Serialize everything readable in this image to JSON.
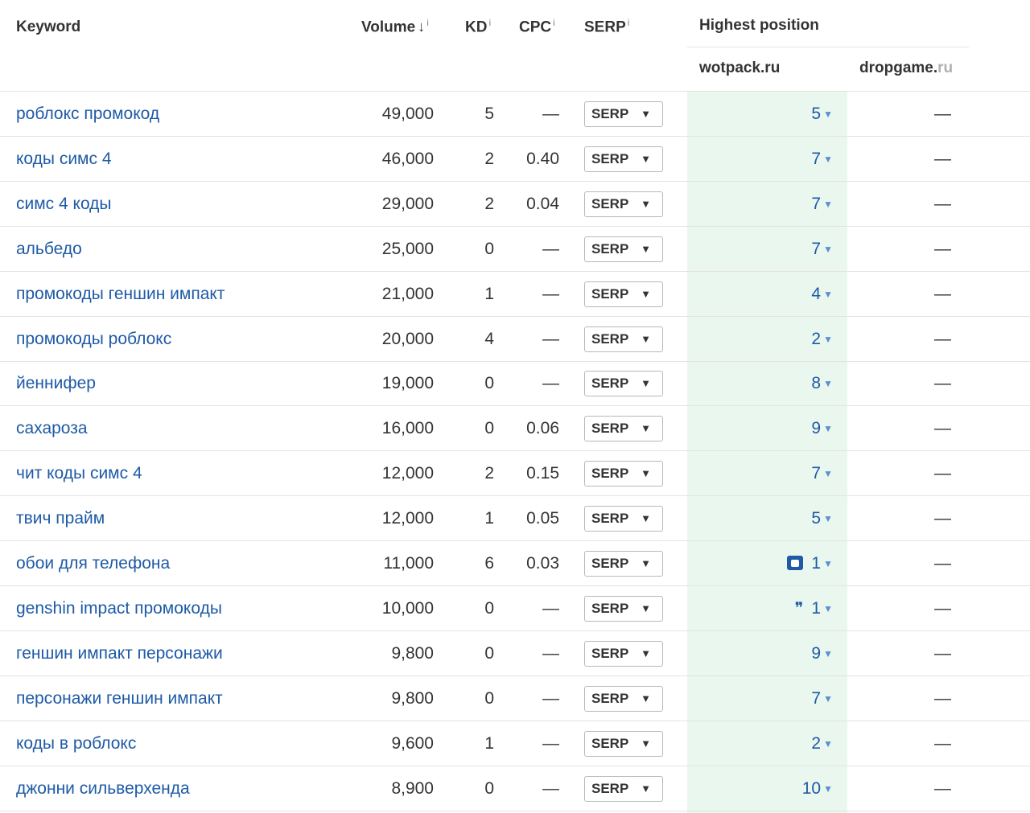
{
  "header": {
    "keyword": "Keyword",
    "volume": "Volume",
    "volume_sort": "↓",
    "kd": "KD",
    "cpc": "CPC",
    "serp": "SERP",
    "info": "i",
    "highest_position": "Highest position",
    "site1": "wotpack.ru",
    "site2_main": "dropgame.",
    "site2_tail": "ru"
  },
  "rows": [
    {
      "keyword": "роблокс промокод",
      "volume": "49,000",
      "kd": "5",
      "cpc": "—",
      "serp": "SERP",
      "pos": "5",
      "dg": "—"
    },
    {
      "keyword": "коды симс 4",
      "volume": "46,000",
      "kd": "2",
      "cpc": "0.40",
      "serp": "SERP",
      "pos": "7",
      "dg": "—"
    },
    {
      "keyword": "симс 4 коды",
      "volume": "29,000",
      "kd": "2",
      "cpc": "0.04",
      "serp": "SERP",
      "pos": "7",
      "dg": "—"
    },
    {
      "keyword": "альбедо",
      "volume": "25,000",
      "kd": "0",
      "cpc": "—",
      "serp": "SERP",
      "pos": "7",
      "dg": "—"
    },
    {
      "keyword": "промокоды геншин импакт",
      "volume": "21,000",
      "kd": "1",
      "cpc": "—",
      "serp": "SERP",
      "pos": "4",
      "dg": "—"
    },
    {
      "keyword": "промокоды роблокс",
      "volume": "20,000",
      "kd": "4",
      "cpc": "—",
      "serp": "SERP",
      "pos": "2",
      "dg": "—"
    },
    {
      "keyword": "йеннифер",
      "volume": "19,000",
      "kd": "0",
      "cpc": "—",
      "serp": "SERP",
      "pos": "8",
      "dg": "—"
    },
    {
      "keyword": "сахароза",
      "volume": "16,000",
      "kd": "0",
      "cpc": "0.06",
      "serp": "SERP",
      "pos": "9",
      "dg": "—"
    },
    {
      "keyword": "чит коды симс 4",
      "volume": "12,000",
      "kd": "2",
      "cpc": "0.15",
      "serp": "SERP",
      "pos": "7",
      "dg": "—"
    },
    {
      "keyword": "твич прайм",
      "volume": "12,000",
      "kd": "1",
      "cpc": "0.05",
      "serp": "SERP",
      "pos": "5",
      "dg": "—"
    },
    {
      "keyword": "обои для телефона",
      "volume": "11,000",
      "kd": "6",
      "cpc": "0.03",
      "serp": "SERP",
      "pos": "1",
      "dg": "—",
      "feature_icon": "image-pack-icon"
    },
    {
      "keyword": "genshin impact промокоды",
      "volume": "10,000",
      "kd": "0",
      "cpc": "—",
      "serp": "SERP",
      "pos": "1",
      "dg": "—",
      "feature_icon": "quote-icon",
      "feature_glyph": "❞"
    },
    {
      "keyword": "геншин импакт персонажи",
      "volume": "9,800",
      "kd": "0",
      "cpc": "—",
      "serp": "SERP",
      "pos": "9",
      "dg": "—"
    },
    {
      "keyword": "персонажи геншин импакт",
      "volume": "9,800",
      "kd": "0",
      "cpc": "—",
      "serp": "SERP",
      "pos": "7",
      "dg": "—"
    },
    {
      "keyword": "коды в роблокс",
      "volume": "9,600",
      "kd": "1",
      "cpc": "—",
      "serp": "SERP",
      "pos": "2",
      "dg": "—"
    },
    {
      "keyword": "джонни сильверхенда",
      "volume": "8,900",
      "kd": "0",
      "cpc": "—",
      "serp": "SERP",
      "pos": "10",
      "dg": "—"
    }
  ],
  "icons": {
    "serp_caret": "▼",
    "pos_caret": "▼"
  },
  "colors": {
    "link": "#1e5aa6",
    "highlight_column": "#eaf7ee"
  }
}
